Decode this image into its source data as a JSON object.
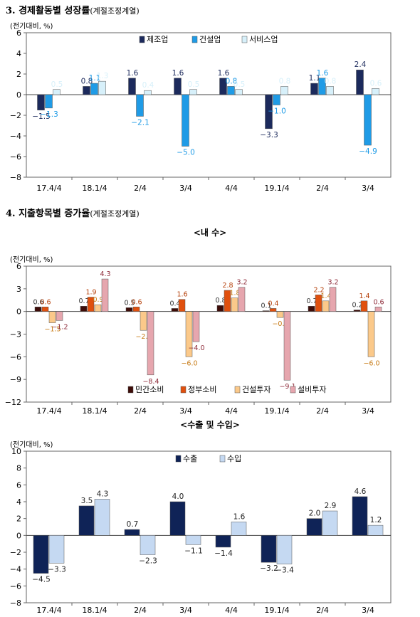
{
  "sections": {
    "s3": {
      "title": "3. 경제활동별 성장률",
      "suffix": "(계절조정계열)"
    },
    "s4": {
      "title": "4. 지출항목별 증가율",
      "suffix": "(계절조정계열)"
    },
    "sub_domestic": "<내   수>",
    "sub_trade": "<수출 및 수입>"
  },
  "chart_data": [
    {
      "type": "bar",
      "unit_label": "(전기대비, %)",
      "categories": [
        "17.4/4",
        "18.1/4",
        "2/4",
        "3/4",
        "4/4",
        "19.1/4",
        "2/4",
        "3/4"
      ],
      "ylim": [
        -8,
        6
      ],
      "yticks": [
        -8,
        -6,
        -4,
        -2,
        0,
        2,
        4,
        6
      ],
      "legend_position": "top-right",
      "grid": false,
      "series": [
        {
          "name": "제조업",
          "color": "#1c2a5c",
          "values": [
            -1.5,
            0.8,
            1.6,
            1.6,
            1.6,
            -3.3,
            1.1,
            2.4
          ]
        },
        {
          "name": "건설업",
          "color": "#1f9be6",
          "values": [
            -1.3,
            1.1,
            -2.1,
            -5.0,
            0.8,
            -1.0,
            1.6,
            -4.9
          ]
        },
        {
          "name": "서비스업",
          "color": "#d7f0fa",
          "values": [
            0.5,
            1.3,
            0.4,
            0.5,
            0.5,
            0.8,
            0.8,
            0.6
          ]
        }
      ]
    },
    {
      "type": "bar",
      "unit_label": "(전기대비, %)",
      "categories": [
        "17.4/4",
        "18.1/4",
        "2/4",
        "3/4",
        "4/4",
        "19.1/4",
        "2/4",
        "3/4"
      ],
      "ylim": [
        -12,
        6
      ],
      "yticks": [
        -12,
        -9,
        -6,
        -3,
        0,
        3,
        6
      ],
      "legend_position": "bottom-right",
      "grid": false,
      "series": [
        {
          "name": "민간소비",
          "color": "#3d0c08",
          "label_color": "#333333",
          "values": [
            0.6,
            0.7,
            0.5,
            0.4,
            0.8,
            0.1,
            0.7,
            0.2
          ]
        },
        {
          "name": "정부소비",
          "color": "#e0500e",
          "label_color": "#b5400a",
          "values": [
            0.6,
            1.9,
            0.6,
            1.6,
            2.8,
            0.4,
            2.2,
            1.4
          ]
        },
        {
          "name": "건설투자",
          "color": "#fbc98a",
          "label_color": "#c77a14",
          "values": [
            -1.5,
            0.9,
            -2.5,
            -6.0,
            1.8,
            -0.8,
            1.4,
            -6.0
          ]
        },
        {
          "name": "설비투자",
          "color": "#e6a6ae",
          "label_color": "#8e2c3a",
          "values": [
            -1.2,
            4.3,
            -8.4,
            -4.0,
            3.2,
            -9.1,
            3.2,
            0.6
          ]
        }
      ]
    },
    {
      "type": "bar",
      "unit_label": "(전기대비, %)",
      "categories": [
        "17.4/4",
        "18.1/4",
        "2/4",
        "3/4",
        "4/4",
        "19.1/4",
        "2/4",
        "3/4"
      ],
      "ylim": [
        -8,
        10
      ],
      "yticks": [
        -8,
        -6,
        -4,
        -2,
        0,
        2,
        4,
        6,
        8,
        10
      ],
      "legend_position": "top-center",
      "grid": false,
      "series": [
        {
          "name": "수출",
          "color": "#0f2357",
          "values": [
            -4.5,
            3.5,
            0.7,
            4.0,
            -1.4,
            -3.2,
            2.0,
            4.6
          ]
        },
        {
          "name": "수입",
          "color": "#c5d9f2",
          "values": [
            -3.3,
            4.3,
            -2.3,
            -1.1,
            1.6,
            -3.4,
            2.9,
            1.2
          ]
        }
      ]
    }
  ]
}
